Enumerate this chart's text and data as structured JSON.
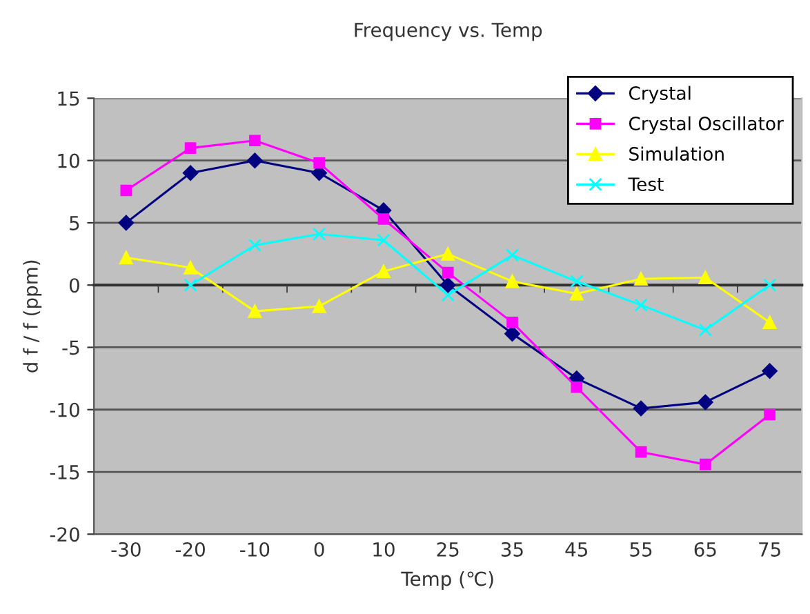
{
  "chart_data": {
    "type": "line",
    "title": "Frequency vs. Temp",
    "xlabel": "Temp (℃)",
    "ylabel": "d f / f (ppm)",
    "categories": [
      "-30",
      "-20",
      "-10",
      "0",
      "10",
      "25",
      "35",
      "45",
      "55",
      "65",
      "75"
    ],
    "series": [
      {
        "name": "Crystal",
        "color": "#000080",
        "marker": "diamond",
        "values": [
          5,
          9,
          10,
          9,
          6,
          0,
          -3.9,
          -7.5,
          -9.9,
          -9.4,
          -6.9
        ]
      },
      {
        "name": "Crystal Oscillator",
        "color": "#ff00ff",
        "marker": "square",
        "values": [
          7.6,
          11,
          11.6,
          9.8,
          5.3,
          1,
          -3,
          -8.2,
          -13.4,
          -14.4,
          -10.4
        ]
      },
      {
        "name": "Simulation",
        "color": "#ffff00",
        "marker": "triangle",
        "values": [
          2.2,
          1.4,
          -2.1,
          -1.7,
          1.1,
          2.5,
          0.3,
          -0.7,
          0.5,
          0.6,
          -3
        ]
      },
      {
        "name": "Test",
        "color": "#00ffff",
        "marker": "cross",
        "values": [
          null,
          0,
          3.2,
          4.1,
          3.6,
          -0.8,
          2.4,
          0.3,
          -1.6,
          -3.6,
          0
        ]
      }
    ],
    "ylim": [
      -20,
      15
    ],
    "yticks": [
      -20,
      -15,
      -10,
      -5,
      0,
      5,
      10,
      15
    ],
    "grid": "y",
    "legend": "top right",
    "line_style": "solid"
  }
}
